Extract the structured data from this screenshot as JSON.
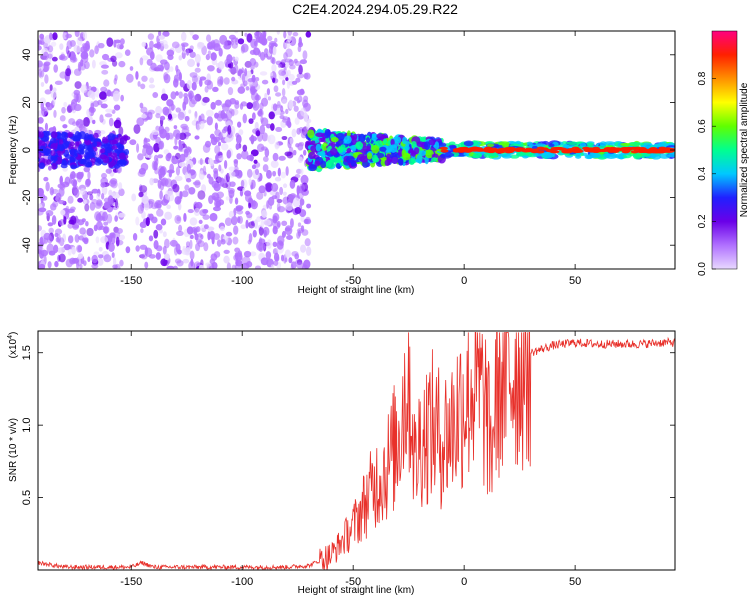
{
  "title": "C2E4.2024.294.05.29.R22",
  "chart_data": [
    {
      "type": "heatmap",
      "xlabel": "Height of straight line (km)",
      "ylabel": "Frequency (Hz)",
      "xlim": [
        -192,
        95
      ],
      "ylim": [
        -50,
        50
      ],
      "xticks": [
        "-150",
        "-100",
        "-50",
        "0",
        "50"
      ],
      "xtick_values": [
        -150,
        -100,
        -50,
        0,
        50
      ],
      "yticks": [
        "-40",
        "-20",
        "0",
        "20",
        "40"
      ],
      "ytick_values": [
        -40,
        -20,
        0,
        20,
        40
      ],
      "colorbar": {
        "label": "Normalized spectral amplitude",
        "range": [
          0,
          1
        ],
        "ticks": [
          "0.0",
          "0.2",
          "0.4",
          "0.6",
          "0.8"
        ],
        "tick_values": [
          0.0,
          0.2,
          0.4,
          0.6,
          0.8
        ],
        "colors": [
          "#e8d8ff",
          "#b070ff",
          "#6a00e8",
          "#2020ff",
          "#00c8ff",
          "#00ff90",
          "#60ff00",
          "#ffff00",
          "#ff9000",
          "#ff2000",
          "#ff0080"
        ]
      },
      "regions": [
        {
          "x_range": [
            -192,
            -70
          ],
          "freq_spread": 50,
          "amplitude": 0.1
        },
        {
          "x_range": [
            -70,
            -10
          ],
          "freq_spread": 8,
          "amplitude": 0.3
        },
        {
          "x_range": [
            -10,
            95
          ],
          "freq_spread": 3,
          "amplitude": 0.85
        }
      ]
    },
    {
      "type": "line",
      "xlabel": "Height of straight line (km)",
      "ylabel": "SNR (10 * v/v)",
      "yscale_label": "(x10",
      "yscale_exp": "4",
      "yscale_close": ")",
      "xlim": [
        -192,
        95
      ],
      "ylim": [
        0,
        1.65
      ],
      "xticks": [
        "-150",
        "-100",
        "-50",
        "0",
        "50"
      ],
      "xtick_values": [
        -150,
        -100,
        -50,
        0,
        50
      ],
      "yticks": [
        "0.5",
        "1.0",
        "1.5"
      ],
      "ytick_values": [
        0.5,
        1.0,
        1.5
      ],
      "series": [
        {
          "color": "#e8302a",
          "x": [
            -192,
            -180,
            -170,
            -160,
            -150,
            -145,
            -140,
            -120,
            -100,
            -80,
            -70,
            -60,
            -55,
            -50,
            -45,
            -40,
            -35,
            -30,
            -25,
            -22,
            -20,
            -15,
            -10,
            -5,
            0,
            5,
            10,
            12,
            15,
            20,
            25,
            30,
            40,
            50,
            60,
            70,
            80,
            90,
            95
          ],
          "y": [
            0.05,
            0.02,
            0.02,
            0.02,
            0.02,
            0.05,
            0.02,
            0.02,
            0.02,
            0.02,
            0.03,
            0.1,
            0.2,
            0.3,
            0.45,
            0.6,
            0.7,
            0.9,
            1.4,
            0.7,
            0.9,
            1.0,
            0.9,
            1.0,
            1.2,
            1.3,
            1.1,
            0.8,
            1.3,
            1.35,
            1.45,
            1.5,
            1.55,
            1.57,
            1.56,
            1.56,
            1.56,
            1.57,
            1.57
          ]
        }
      ]
    }
  ]
}
